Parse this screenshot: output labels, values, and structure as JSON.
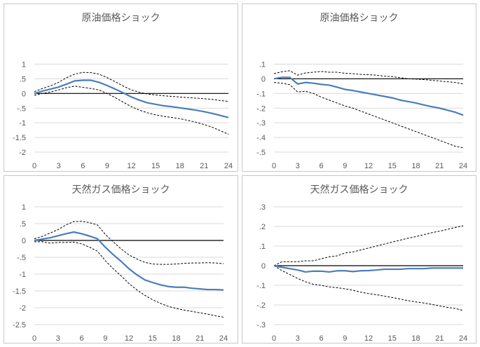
{
  "chart_data": [
    {
      "type": "line",
      "title": "原油価格ショック",
      "ylim": [
        -2,
        1
      ],
      "yticks": [
        1,
        0.5,
        0,
        -0.5,
        -1,
        -1.5,
        -2
      ],
      "xticks": [
        0,
        3,
        6,
        9,
        12,
        15,
        18,
        21,
        24
      ],
      "xlim": [
        0,
        24
      ],
      "grid": true,
      "colors": {
        "main": "#4a7ebb",
        "band": "#000000",
        "grid": "#d9d9d9",
        "zero": "#000000"
      },
      "series": [
        {
          "role": "main",
          "values": [
            0,
            0.08,
            0.15,
            0.22,
            0.32,
            0.43,
            0.45,
            0.45,
            0.38,
            0.27,
            0.15,
            0.02,
            -0.12,
            -0.23,
            -0.32,
            -0.37,
            -0.42,
            -0.45,
            -0.49,
            -0.53,
            -0.57,
            -0.62,
            -0.68,
            -0.75,
            -0.82
          ]
        },
        {
          "role": "upper",
          "values": [
            0.06,
            0.17,
            0.26,
            0.38,
            0.54,
            0.66,
            0.72,
            0.71,
            0.66,
            0.54,
            0.4,
            0.25,
            0.12,
            0.04,
            -0.02,
            -0.05,
            -0.08,
            -0.1,
            -0.12,
            -0.14,
            -0.16,
            -0.18,
            -0.2,
            -0.24,
            -0.27
          ]
        },
        {
          "role": "lower",
          "values": [
            -0.06,
            0.0,
            0.05,
            0.12,
            0.2,
            0.25,
            0.21,
            0.17,
            0.12,
            0.0,
            -0.14,
            -0.3,
            -0.45,
            -0.57,
            -0.66,
            -0.73,
            -0.78,
            -0.82,
            -0.86,
            -0.92,
            -0.98,
            -1.06,
            -1.15,
            -1.27,
            -1.39
          ]
        }
      ]
    },
    {
      "type": "line",
      "title": "原油価格ショック",
      "ylim": [
        -0.5,
        0.1
      ],
      "yticks": [
        0.1,
        0,
        -0.1,
        -0.2,
        -0.3,
        -0.4,
        -0.5
      ],
      "xticks": [
        0,
        3,
        6,
        9,
        12,
        15,
        18,
        21,
        24
      ],
      "xlim": [
        0,
        24
      ],
      "grid": true,
      "colors": {
        "main": "#4a7ebb",
        "band": "#000000",
        "grid": "#d9d9d9",
        "zero": "#000000"
      },
      "series": [
        {
          "role": "main",
          "values": [
            0,
            0.01,
            0.01,
            -0.035,
            -0.025,
            -0.03,
            -0.038,
            -0.043,
            -0.057,
            -0.072,
            -0.08,
            -0.09,
            -0.1,
            -0.11,
            -0.12,
            -0.13,
            -0.145,
            -0.155,
            -0.165,
            -0.178,
            -0.19,
            -0.2,
            -0.214,
            -0.228,
            -0.248
          ]
        },
        {
          "role": "upper",
          "values": [
            0.035,
            0.048,
            0.055,
            0.025,
            0.04,
            0.045,
            0.05,
            0.045,
            0.045,
            0.038,
            0.035,
            0.03,
            0.028,
            0.025,
            0.018,
            0.015,
            0.008,
            0.0,
            -0.002,
            -0.005,
            -0.01,
            -0.015,
            -0.02,
            -0.025,
            -0.035
          ]
        },
        {
          "role": "lower",
          "values": [
            -0.025,
            -0.03,
            -0.04,
            -0.09,
            -0.085,
            -0.1,
            -0.125,
            -0.145,
            -0.165,
            -0.185,
            -0.2,
            -0.22,
            -0.24,
            -0.26,
            -0.28,
            -0.3,
            -0.32,
            -0.34,
            -0.36,
            -0.38,
            -0.4,
            -0.42,
            -0.44,
            -0.46,
            -0.47
          ]
        }
      ]
    },
    {
      "type": "line",
      "title": "天然ガス価格ショック",
      "ylim": [
        -2.5,
        1
      ],
      "yticks": [
        1,
        0.5,
        0,
        -0.5,
        -1,
        -1.5,
        -2,
        -2.5
      ],
      "xticks": [
        0,
        3,
        6,
        9,
        12,
        15,
        18,
        21,
        24
      ],
      "xlim": [
        0,
        24
      ],
      "grid": true,
      "colors": {
        "main": "#4a7ebb",
        "band": "#000000",
        "grid": "#d9d9d9",
        "zero": "#000000"
      },
      "series": [
        {
          "role": "main",
          "values": [
            0,
            0.04,
            0.08,
            0.14,
            0.2,
            0.25,
            0.2,
            0.13,
            0.05,
            -0.2,
            -0.42,
            -0.62,
            -0.84,
            -1.02,
            -1.17,
            -1.25,
            -1.32,
            -1.37,
            -1.39,
            -1.39,
            -1.42,
            -1.44,
            -1.46,
            -1.46,
            -1.47
          ]
        },
        {
          "role": "upper",
          "values": [
            0.05,
            0.12,
            0.22,
            0.32,
            0.46,
            0.56,
            0.57,
            0.53,
            0.46,
            0.18,
            -0.04,
            -0.25,
            -0.43,
            -0.55,
            -0.65,
            -0.7,
            -0.71,
            -0.71,
            -0.7,
            -0.68,
            -0.67,
            -0.67,
            -0.66,
            -0.67,
            -0.69
          ]
        },
        {
          "role": "lower",
          "values": [
            -0.04,
            -0.04,
            -0.08,
            -0.06,
            -0.06,
            -0.05,
            -0.1,
            -0.2,
            -0.32,
            -0.6,
            -0.84,
            -1.05,
            -1.28,
            -1.47,
            -1.63,
            -1.76,
            -1.87,
            -1.96,
            -2.02,
            -2.07,
            -2.11,
            -2.15,
            -2.19,
            -2.24,
            -2.28
          ]
        }
      ]
    },
    {
      "type": "line",
      "title": "天然ガス価格ショック",
      "ylim": [
        -0.3,
        0.3
      ],
      "yticks": [
        0.3,
        0.2,
        0.1,
        0,
        -0.1,
        -0.2,
        -0.3
      ],
      "xticks": [
        0,
        3,
        6,
        9,
        12,
        15,
        18,
        21,
        24
      ],
      "xlim": [
        0,
        24
      ],
      "grid": true,
      "colors": {
        "main": "#4a7ebb",
        "band": "#000000",
        "grid": "#d9d9d9",
        "zero": "#000000"
      },
      "series": [
        {
          "role": "main",
          "values": [
            0,
            -0.008,
            -0.015,
            -0.022,
            -0.032,
            -0.028,
            -0.028,
            -0.032,
            -0.026,
            -0.026,
            -0.03,
            -0.026,
            -0.025,
            -0.022,
            -0.018,
            -0.018,
            -0.018,
            -0.015,
            -0.015,
            -0.015,
            -0.012,
            -0.012,
            -0.012,
            -0.012,
            -0.012
          ]
        },
        {
          "role": "upper",
          "values": [
            0,
            0.02,
            0.02,
            0.02,
            0.025,
            0.025,
            0.035,
            0.045,
            0.05,
            0.065,
            0.07,
            0.08,
            0.09,
            0.1,
            0.11,
            0.12,
            0.13,
            0.14,
            0.148,
            0.158,
            0.168,
            0.176,
            0.185,
            0.195,
            0.203
          ]
        },
        {
          "role": "lower",
          "values": [
            0,
            -0.025,
            -0.045,
            -0.065,
            -0.082,
            -0.095,
            -0.1,
            -0.108,
            -0.112,
            -0.118,
            -0.125,
            -0.135,
            -0.142,
            -0.148,
            -0.155,
            -0.162,
            -0.17,
            -0.178,
            -0.185,
            -0.19,
            -0.197,
            -0.205,
            -0.212,
            -0.218,
            -0.228
          ]
        }
      ]
    }
  ]
}
